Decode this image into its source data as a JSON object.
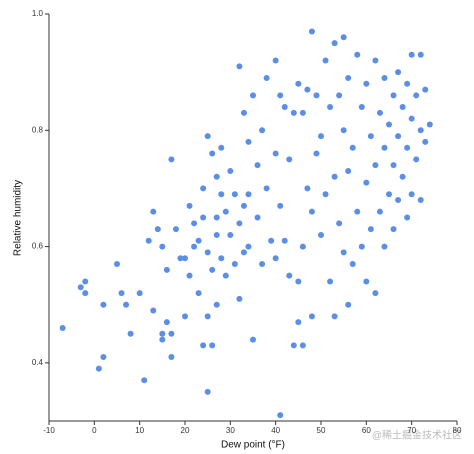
{
  "chart_data": {
    "type": "scatter",
    "x_label": "Dew point (°F)",
    "y_label": "Relative humidity",
    "watermark": "@稀土掘金技术社区",
    "color": "#5b8ee6",
    "xlim": [
      -10,
      80
    ],
    "xticks": [
      -10,
      0,
      10,
      20,
      30,
      40,
      50,
      60,
      70,
      80
    ],
    "ylim": [
      0.3,
      1.0
    ],
    "yticks": [
      0.4,
      0.6,
      0.8,
      {
        "value": 1,
        "label": "1.0"
      }
    ],
    "x": [
      -7,
      -3,
      -2,
      -2,
      1,
      2,
      2,
      5,
      6,
      7,
      8,
      10,
      11,
      12,
      13,
      13,
      14,
      15,
      15,
      15,
      16,
      16,
      17,
      17,
      17,
      18,
      19,
      20,
      20,
      21,
      21,
      22,
      22,
      23,
      23,
      24,
      24,
      24,
      25,
      25,
      25,
      25,
      26,
      26,
      26,
      27,
      27,
      27,
      27,
      28,
      28,
      28,
      29,
      29,
      30,
      30,
      31,
      31,
      32,
      32,
      32,
      33,
      33,
      33,
      34,
      34,
      34,
      35,
      35,
      36,
      36,
      37,
      37,
      38,
      38,
      39,
      40,
      40,
      40,
      41,
      41,
      41,
      42,
      42,
      43,
      43,
      44,
      44,
      45,
      45,
      45,
      46,
      46,
      46,
      47,
      47,
      48,
      48,
      48,
      49,
      49,
      50,
      50,
      51,
      51,
      52,
      52,
      53,
      53,
      53,
      54,
      54,
      55,
      55,
      55,
      56,
      56,
      56,
      57,
      57,
      58,
      58,
      59,
      59,
      60,
      60,
      60,
      61,
      61,
      62,
      62,
      62,
      63,
      63,
      64,
      64,
      64,
      65,
      65,
      66,
      66,
      66,
      67,
      67,
      67,
      68,
      68,
      69,
      69,
      69,
      70,
      70,
      70,
      71,
      71,
      72,
      72,
      72,
      73,
      73,
      74
    ],
    "y": [
      0.46,
      0.53,
      0.54,
      0.52,
      0.39,
      0.5,
      0.41,
      0.57,
      0.52,
      0.5,
      0.45,
      0.52,
      0.37,
      0.61,
      0.66,
      0.49,
      0.63,
      0.45,
      0.44,
      0.6,
      0.56,
      0.47,
      0.75,
      0.41,
      0.45,
      0.63,
      0.58,
      0.58,
      0.48,
      0.67,
      0.55,
      0.64,
      0.6,
      0.61,
      0.52,
      0.65,
      0.7,
      0.43,
      0.79,
      0.35,
      0.59,
      0.48,
      0.76,
      0.43,
      0.56,
      0.65,
      0.72,
      0.62,
      0.5,
      0.69,
      0.58,
      0.77,
      0.66,
      0.55,
      0.73,
      0.62,
      0.69,
      0.57,
      0.91,
      0.51,
      0.64,
      0.83,
      0.67,
      0.59,
      0.78,
      0.69,
      0.6,
      0.86,
      0.44,
      0.74,
      0.65,
      0.8,
      0.57,
      0.89,
      0.7,
      0.61,
      0.92,
      0.76,
      0.58,
      0.31,
      0.86,
      0.67,
      0.84,
      0.61,
      0.75,
      0.55,
      0.83,
      0.43,
      0.88,
      0.47,
      0.54,
      0.83,
      0.6,
      0.43,
      0.87,
      0.7,
      0.97,
      0.66,
      0.48,
      0.86,
      0.76,
      0.79,
      0.62,
      0.92,
      0.69,
      0.84,
      0.54,
      0.95,
      0.72,
      0.48,
      0.86,
      0.64,
      0.96,
      0.8,
      0.59,
      0.89,
      0.73,
      0.5,
      0.77,
      0.57,
      0.93,
      0.66,
      0.84,
      0.6,
      0.88,
      0.71,
      0.54,
      0.79,
      0.63,
      0.92,
      0.74,
      0.52,
      0.83,
      0.66,
      0.89,
      0.77,
      0.6,
      0.81,
      0.69,
      0.86,
      0.74,
      0.63,
      0.9,
      0.79,
      0.68,
      0.84,
      0.72,
      0.88,
      0.77,
      0.65,
      0.93,
      0.82,
      0.69,
      0.86,
      0.75,
      0.93,
      0.8,
      0.68,
      0.87,
      0.78,
      0.81
    ]
  }
}
